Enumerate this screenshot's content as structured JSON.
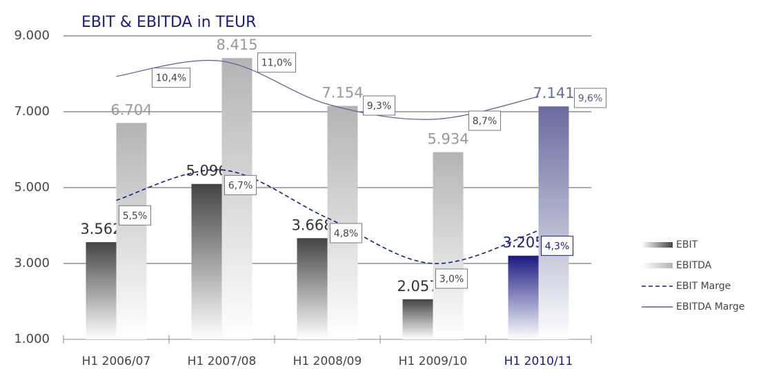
{
  "chart_data": {
    "type": "bar",
    "title": "EBIT & EBITDA in TEUR",
    "categories": [
      "H1 2006/07",
      "H1 2007/08",
      "H1 2008/09",
      "H1 2009/10",
      "H1 2010/11"
    ],
    "highlight_index": 4,
    "highlight_label_color": "#1a1a80",
    "series": [
      {
        "name": "EBIT",
        "color": "#444444",
        "highlight_color": "#1a1a80",
        "values": [
          3562,
          5096,
          3668,
          2057,
          3205
        ],
        "value_labels": [
          "3.562",
          "5.096",
          "3.668",
          "2.057",
          "3.205"
        ]
      },
      {
        "name": "EBITDA",
        "color": "#b4b4b4",
        "highlight_color": "#6a6a9e",
        "values": [
          6704,
          8415,
          7154,
          5934,
          7141
        ],
        "value_labels": [
          "6.704",
          "8.415",
          "7.154",
          "5.934",
          "7.141"
        ]
      },
      {
        "name": "EBIT Marge",
        "type": "line",
        "axis": "y2",
        "dashed": true,
        "color": "#1a1a80",
        "values": [
          5.5,
          6.7,
          4.8,
          3.0,
          4.3
        ],
        "value_labels": [
          "5,5%",
          "6,7%",
          "4,8%",
          "3,0%",
          "4,3%"
        ]
      },
      {
        "name": "EBITDA Marge",
        "type": "line",
        "axis": "y2",
        "dashed": false,
        "color": "#5a5a99",
        "values": [
          10.4,
          11.0,
          9.3,
          8.7,
          9.6
        ],
        "value_labels": [
          "10,4%",
          "11,0%",
          "9,3%",
          "8,7%",
          "9,6%"
        ]
      }
    ],
    "ylim": [
      1000,
      9000
    ],
    "yticks": [
      {
        "value": 1000,
        "label": "1.000"
      },
      {
        "value": 3000,
        "label": "3.000"
      },
      {
        "value": 5000,
        "label": "5.000"
      },
      {
        "value": 7000,
        "label": "7.000"
      },
      {
        "value": 9000,
        "label": "9.000"
      }
    ],
    "y2lim": [
      0,
      12
    ],
    "grid": true,
    "legend": "right"
  }
}
